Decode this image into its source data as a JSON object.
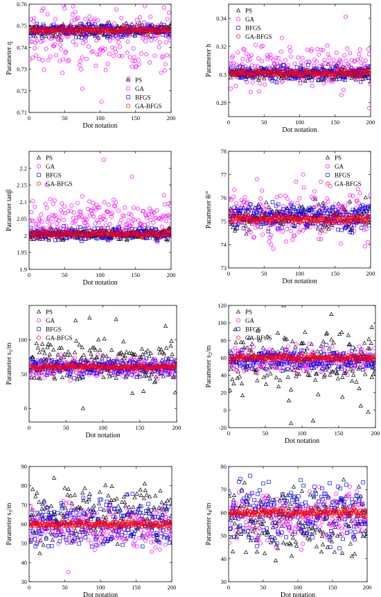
{
  "colors": {
    "PS": "#000000",
    "GA": "#ff00ff",
    "BFGS": "#0000ff",
    "GA-BFGS": "#ff0000"
  },
  "chart_data": [
    {
      "id": "q",
      "type": "scatter",
      "ylabel": "Parameter q",
      "xlabel": "Dot notation",
      "xlim": [
        0,
        200
      ],
      "ylim": [
        0.71,
        0.76
      ],
      "xticks": [
        "0",
        "50",
        "100",
        "150",
        "200"
      ],
      "yticks": [
        "0.71",
        "0.72",
        "0.73",
        "0.74",
        "0.75",
        "0.76"
      ],
      "legend": [
        "PS",
        "GA",
        "BFGS",
        "GA-BFGS"
      ],
      "legend_position": "bottom-right",
      "series": [
        {
          "name": "PS",
          "marker": "triangle",
          "center": 0.748,
          "spread": 0.0028
        },
        {
          "name": "GA",
          "marker": "circle",
          "center": 0.744,
          "spread": 0.012,
          "outliers": [
            [
              102,
              0.715
            ],
            [
              75,
              0.721
            ],
            [
              50,
              0.758
            ],
            [
              62,
              0.759
            ],
            [
              20,
              0.758
            ]
          ]
        },
        {
          "name": "BFGS",
          "marker": "square",
          "center": 0.748,
          "spread": 0.0025
        },
        {
          "name": "GA-BFGS",
          "marker": "circle",
          "center": 0.748,
          "spread": 0.0012
        }
      ]
    },
    {
      "id": "h",
      "type": "scatter",
      "ylabel": "Parameter h",
      "xlabel": "Dot notation",
      "xlim": [
        0,
        200
      ],
      "ylim": [
        0.27,
        0.35
      ],
      "xticks": [
        "0",
        "50",
        "100",
        "150",
        "200"
      ],
      "yticks": [
        "0.28",
        "0.3",
        "0.32",
        "0.34"
      ],
      "legend": [
        "PS",
        "GA",
        "BFGS",
        "GA-BFGS"
      ],
      "legend_position": "top-left",
      "series": [
        {
          "name": "PS",
          "marker": "triangle",
          "center": 0.301,
          "spread": 0.004
        },
        {
          "name": "GA",
          "marker": "circle",
          "center": 0.305,
          "spread": 0.012,
          "outliers": [
            [
              165,
              0.341
            ],
            [
              198,
              0.276
            ],
            [
              75,
              0.326
            ]
          ]
        },
        {
          "name": "BFGS",
          "marker": "square",
          "center": 0.301,
          "spread": 0.004
        },
        {
          "name": "GA-BFGS",
          "marker": "circle",
          "center": 0.301,
          "spread": 0.002
        }
      ]
    },
    {
      "id": "tanb",
      "type": "scatter",
      "ylabel": "Parameter tanβ",
      "xlabel": "Dot notation",
      "xlim": [
        0,
        200
      ],
      "ylim": [
        1.9,
        2.25
      ],
      "xticks": [
        "0",
        "50",
        "100",
        "150",
        "200"
      ],
      "yticks": [
        "1.9",
        "1.95",
        "2",
        "2.05",
        "2.1",
        "2.15",
        "2.2"
      ],
      "legend": [
        "PS",
        "GA",
        "BFGS",
        "GA-BFGS"
      ],
      "legend_position": "top-left",
      "series": [
        {
          "name": "PS",
          "marker": "triangle",
          "center": 2.005,
          "spread": 0.015
        },
        {
          "name": "GA",
          "marker": "circle",
          "center": 2.05,
          "spread": 0.05,
          "outliers": [
            [
              105,
              2.225
            ],
            [
              145,
              2.175
            ],
            [
              25,
              2.15
            ]
          ]
        },
        {
          "name": "BFGS",
          "marker": "square",
          "center": 2.005,
          "spread": 0.015
        },
        {
          "name": "GA-BFGS",
          "marker": "circle",
          "center": 2.005,
          "spread": 0.008
        }
      ]
    },
    {
      "id": "theta",
      "type": "scatter",
      "ylabel": "Parameter θ/°",
      "xlabel": "Dot notation",
      "xlim": [
        0,
        200
      ],
      "ylim": [
        73,
        78
      ],
      "xticks": [
        "0",
        "50",
        "100",
        "150",
        "200"
      ],
      "yticks": [
        "73",
        "74",
        "75",
        "76",
        "77",
        "78"
      ],
      "legend": [
        "PS",
        "GA",
        "BFGS",
        "GA-BFGS"
      ],
      "legend_position": "top-right",
      "series": [
        {
          "name": "PS",
          "marker": "triangle",
          "center": 75.2,
          "spread": 0.5
        },
        {
          "name": "GA",
          "marker": "circle",
          "center": 75.3,
          "spread": 1.0,
          "outliers": [
            [
              105,
              77.0
            ],
            [
              40,
              76.8
            ],
            [
              130,
              76.7
            ],
            [
              60,
              74.0
            ]
          ]
        },
        {
          "name": "BFGS",
          "marker": "square",
          "center": 75.2,
          "spread": 0.45
        },
        {
          "name": "GA-BFGS",
          "marker": "circle",
          "center": 75.1,
          "spread": 0.15
        }
      ]
    },
    {
      "id": "s1",
      "type": "scatter",
      "ylabel": "Parameter s1/m",
      "xlabel": "Dot notation",
      "xlim": [
        0,
        200
      ],
      "ylim": [
        -20,
        150
      ],
      "xticks": [
        "0",
        "50",
        "100",
        "150",
        "200"
      ],
      "yticks": [
        "0",
        "50",
        "100"
      ],
      "legend": [
        "PS",
        "GA",
        "BFGS",
        "GA-BFGS"
      ],
      "legend_position": "top-left",
      "series": [
        {
          "name": "PS",
          "marker": "triangle",
          "center": 68,
          "spread": 25,
          "outliers": [
            [
              73,
              0
            ],
            [
              82,
              132
            ],
            [
              118,
              130
            ],
            [
              63,
              128
            ],
            [
              185,
              120
            ],
            [
              140,
              22
            ],
            [
              155,
              25
            ],
            [
              198,
              23
            ]
          ]
        },
        {
          "name": "GA",
          "marker": "circle",
          "center": 60,
          "spread": 12
        },
        {
          "name": "BFGS",
          "marker": "square",
          "center": 60,
          "spread": 10
        },
        {
          "name": "GA-BFGS",
          "marker": "circle",
          "center": 60,
          "spread": 3
        }
      ]
    },
    {
      "id": "s2",
      "type": "scatter",
      "ylabel": "Parameter s2/m",
      "xlabel": "Dot notation",
      "xlim": [
        0,
        200
      ],
      "ylim": [
        -20,
        120
      ],
      "xticks": [
        "0",
        "50",
        "100",
        "150",
        "200"
      ],
      "yticks": [
        "-20",
        "0",
        "20",
        "40",
        "60",
        "80",
        "100",
        "120"
      ],
      "legend": [
        "PS",
        "GA",
        "BFGS",
        "GA-BFGS"
      ],
      "legend_position": "top-left",
      "series": [
        {
          "name": "PS",
          "marker": "triangle",
          "center": 55,
          "spread": 30,
          "outliers": [
            [
              75,
              120
            ],
            [
              140,
              110
            ],
            [
              85,
              -15
            ],
            [
              115,
              -12
            ],
            [
              155,
              15
            ],
            [
              180,
              5
            ],
            [
              190,
              -2
            ],
            [
              195,
              95
            ]
          ]
        },
        {
          "name": "GA",
          "marker": "circle",
          "center": 58,
          "spread": 12
        },
        {
          "name": "BFGS",
          "marker": "square",
          "center": 58,
          "spread": 10
        },
        {
          "name": "GA-BFGS",
          "marker": "circle",
          "center": 60,
          "spread": 3
        }
      ]
    },
    {
      "id": "s3",
      "type": "scatter",
      "ylabel": "Parameter s3/m",
      "xlabel": "Dot notation",
      "xlim": [
        0,
        200
      ],
      "ylim": [
        30,
        90
      ],
      "xticks": [
        "0",
        "50",
        "100",
        "150",
        "200"
      ],
      "yticks": [
        "30",
        "40",
        "50",
        "60",
        "70",
        "80",
        "90"
      ],
      "legend": [],
      "series": [
        {
          "name": "PS",
          "marker": "triangle",
          "center": 64,
          "spread": 13
        },
        {
          "name": "GA",
          "marker": "circle",
          "center": 58,
          "spread": 10,
          "outliers": [
            [
              55,
              35
            ]
          ]
        },
        {
          "name": "BFGS",
          "marker": "square",
          "center": 60,
          "spread": 11
        },
        {
          "name": "GA-BFGS",
          "marker": "circle",
          "center": 60,
          "spread": 1.5
        }
      ]
    },
    {
      "id": "s4",
      "type": "scatter",
      "ylabel": "Parameter s4/m",
      "xlabel": "Dot notation",
      "xlim": [
        0,
        200
      ],
      "ylim": [
        30,
        80
      ],
      "xticks": [
        "0",
        "50",
        "100",
        "150",
        "200"
      ],
      "yticks": [
        "30",
        "40",
        "50",
        "60",
        "70",
        "80"
      ],
      "legend": [],
      "series": [
        {
          "name": "PS",
          "marker": "triangle",
          "center": 57,
          "spread": 12
        },
        {
          "name": "GA",
          "marker": "circle",
          "center": 58,
          "spread": 10
        },
        {
          "name": "BFGS",
          "marker": "square",
          "center": 60,
          "spread": 11
        },
        {
          "name": "GA-BFGS",
          "marker": "circle",
          "center": 60,
          "spread": 1.5
        }
      ]
    }
  ]
}
